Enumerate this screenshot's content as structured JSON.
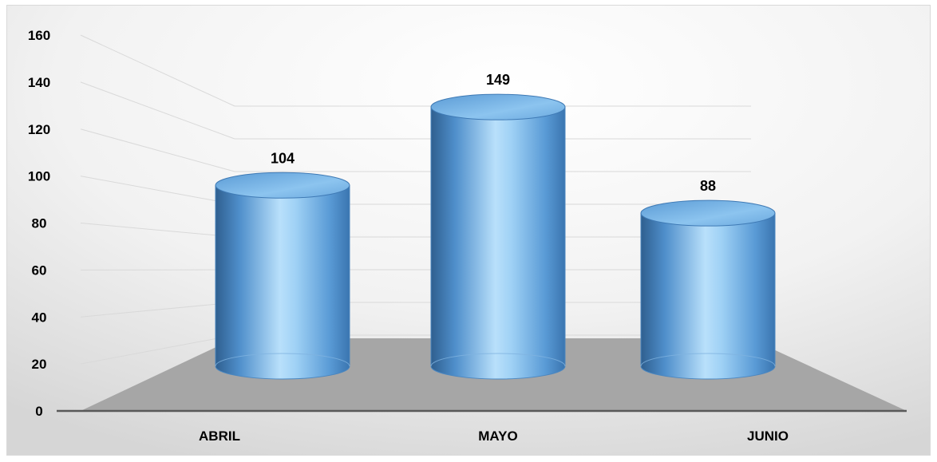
{
  "chart_data": {
    "type": "bar",
    "style": "3d-cylinder",
    "categories": [
      "ABRIL",
      "MAYO",
      "JUNIO"
    ],
    "values": [
      104,
      149,
      88
    ],
    "data_labels": [
      "104",
      "149",
      "88"
    ],
    "yticks": [
      "0",
      "20",
      "40",
      "60",
      "80",
      "100",
      "120",
      "140",
      "160"
    ],
    "ylim": [
      0,
      160
    ],
    "grid": true,
    "legend": "none",
    "colors": {
      "bar": "#5b9bd5",
      "bar_highlight": "#b9e0fb",
      "bar_dark": "#2f5f8f",
      "floor": "#a6a6a6",
      "gridline": "#d9d9d9",
      "axis": "#595959",
      "text": "#000000"
    }
  }
}
